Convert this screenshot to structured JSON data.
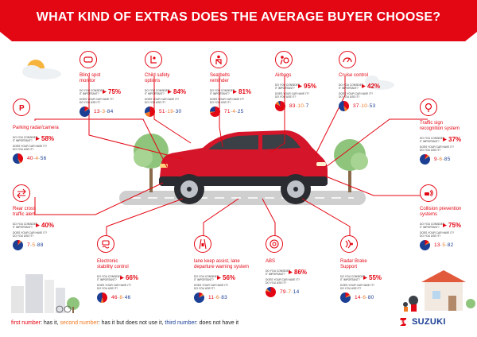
{
  "title": "WHAT KIND OF EXTRAS DOES THE AVERAGE BUYER CHOOSE?",
  "colors": {
    "red": "#e30613",
    "orange": "#f07a24",
    "blue": "#1c3f94",
    "green": "#7fb96c",
    "grey": "#d9d9d9"
  },
  "legend_colors": [
    "has it",
    "has it but does not use it",
    "does not have it"
  ],
  "features": [
    {
      "id": "blind",
      "icon": "mirror-icon",
      "name": "Blind spot\nmonitor",
      "q1": "DO YOU CONSIDER\nIT IMPORTANT?",
      "pct": "75%",
      "q2": "DOES YOUR CAR HAVE IT?\nDO YOU USE IT?",
      "nums": "13-3-84",
      "has": 13,
      "unused": 3,
      "not": 84
    },
    {
      "id": "child",
      "icon": "child-seat-icon",
      "name": "Child safety\noptions",
      "q1": "DO YOU CONSIDER\nIT IMPORTANT?",
      "pct": "84%",
      "q2": "DOES YOUR CAR HAVE IT?\nDO YOU USE IT?",
      "nums": "51-19-30",
      "has": 51,
      "unused": 19,
      "not": 30
    },
    {
      "id": "seatbelt",
      "icon": "seatbelt-icon",
      "name": "Seatbelts\nreminder",
      "q1": "DO YOU CONSIDER\nIT IMPORTANT?",
      "pct": "81%",
      "q2": "DOES YOUR CAR HAVE IT?\nDO YOU USE IT?",
      "nums": "71-4-25",
      "has": 71,
      "unused": 4,
      "not": 25
    },
    {
      "id": "airbag",
      "icon": "airbag-icon",
      "name": "Airbags",
      "q1": "DO YOU CONSIDER\nIT IMPORTANT?",
      "pct": "95%",
      "q2": "DOES YOUR CAR HAVE IT?\nDO YOU USE IT?",
      "nums": "83-10-7",
      "has": 83,
      "unused": 10,
      "not": 7
    },
    {
      "id": "cruise",
      "icon": "speedometer-icon",
      "name": "Cruise control",
      "q1": "DO YOU CONSIDER\nIT IMPORTANT?",
      "pct": "42%",
      "q2": "DOES YOUR CAR HAVE IT?\nDO YOU USE IT?",
      "nums": "37-10-53",
      "has": 37,
      "unused": 10,
      "not": 53
    },
    {
      "id": "parking",
      "icon": "parking-icon",
      "name": "Parking radar/camera",
      "q1": "DO YOU CONSIDER\nIT IMPORTANT?",
      "pct": "58%",
      "q2": "DOES YOUR CAR HAVE IT?\nDO YOU USE IT?",
      "nums": "40-4-56",
      "has": 40,
      "unused": 4,
      "not": 56
    },
    {
      "id": "traffic",
      "icon": "traffic-sign-icon",
      "name": "Traffic sign\nrecognition system",
      "q1": "DO YOU CONSIDER\nIT IMPORTANT?",
      "pct": "37%",
      "q2": "DOES YOUR CAR HAVE IT?\nDO YOU USE IT?",
      "nums": "9-6-85",
      "has": 9,
      "unused": 6,
      "not": 85
    },
    {
      "id": "rearcross",
      "icon": "cross-traffic-icon",
      "name": "Rear cross\ntraffic alert",
      "q1": "DO YOU CONSIDER\nIT IMPORTANT?",
      "pct": "40%",
      "q2": "DOES YOUR CAR HAVE IT?\nDO YOU USE IT?",
      "nums": "7-5-88",
      "has": 7,
      "unused": 5,
      "not": 88
    },
    {
      "id": "collision",
      "icon": "collision-icon",
      "name": "Collision prevention\nsystems",
      "q1": "DO YOU CONSIDER\nIT IMPORTANT?",
      "pct": "75%",
      "q2": "DOES YOUR CAR HAVE IT?\nDO YOU USE IT?",
      "nums": "13-5-82",
      "has": 13,
      "unused": 5,
      "not": 82
    },
    {
      "id": "esc",
      "icon": "stability-icon",
      "name": "Electronic\nstability control",
      "q1": "DO YOU CONSIDER\nIT IMPORTANT?",
      "pct": "66%",
      "q2": "DOES YOUR CAR HAVE IT?\nDO YOU USE IT?",
      "nums": "46-8-46",
      "has": 46,
      "unused": 8,
      "not": 46
    },
    {
      "id": "lane",
      "icon": "lane-assist-icon",
      "name": "lane keep assist, lane\ndeparture warning system",
      "q1": "DO YOU CONSIDER\nIT IMPORTANT?",
      "pct": "56%",
      "q2": "DOES YOUR CAR HAVE IT?\nDO YOU USE IT?",
      "nums": "11-6-83",
      "has": 11,
      "unused": 6,
      "not": 83
    },
    {
      "id": "abs",
      "icon": "abs-icon",
      "name": "ABS",
      "q1": "DO YOU CONSIDER\nIT IMPORTANT?",
      "pct": "86%",
      "q2": "DOES YOUR CAR HAVE IT?\nDO YOU USE IT?",
      "nums": "79-7-14",
      "has": 79,
      "unused": 7,
      "not": 14
    },
    {
      "id": "radar",
      "icon": "radar-brake-icon",
      "name": "Radar Brake\nSupport",
      "q1": "DO YOU CONSIDER\nIT IMPORTANT?",
      "pct": "55%",
      "q2": "DOES YOUR CAR HAVE IT?\nDO YOU USE IT?",
      "nums": "14-6-80",
      "has": 14,
      "unused": 6,
      "not": 80
    }
  ],
  "footnote": {
    "first": "first number",
    "first_text": ": has it, ",
    "second": "second number",
    "second_text": ": has it but does not use it, ",
    "third": "third number",
    "third_text": ": does not have it"
  },
  "brand": "SUZUKI"
}
